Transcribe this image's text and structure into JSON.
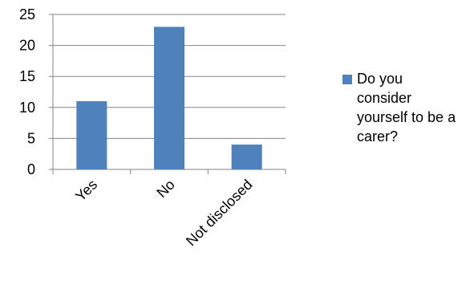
{
  "chart_data": {
    "type": "bar",
    "categories": [
      "Yes",
      "No",
      "Not disclosed"
    ],
    "series": [
      {
        "name": "Do you consider yourself to be a carer?",
        "values": [
          11,
          23,
          4
        ]
      }
    ],
    "title": "",
    "xlabel": "",
    "ylabel": "",
    "ylim": [
      0,
      25
    ],
    "yticks": [
      0,
      5,
      10,
      15,
      20,
      25
    ],
    "grid": true,
    "legend_position": "right",
    "bar_color": "#4F81BD"
  }
}
